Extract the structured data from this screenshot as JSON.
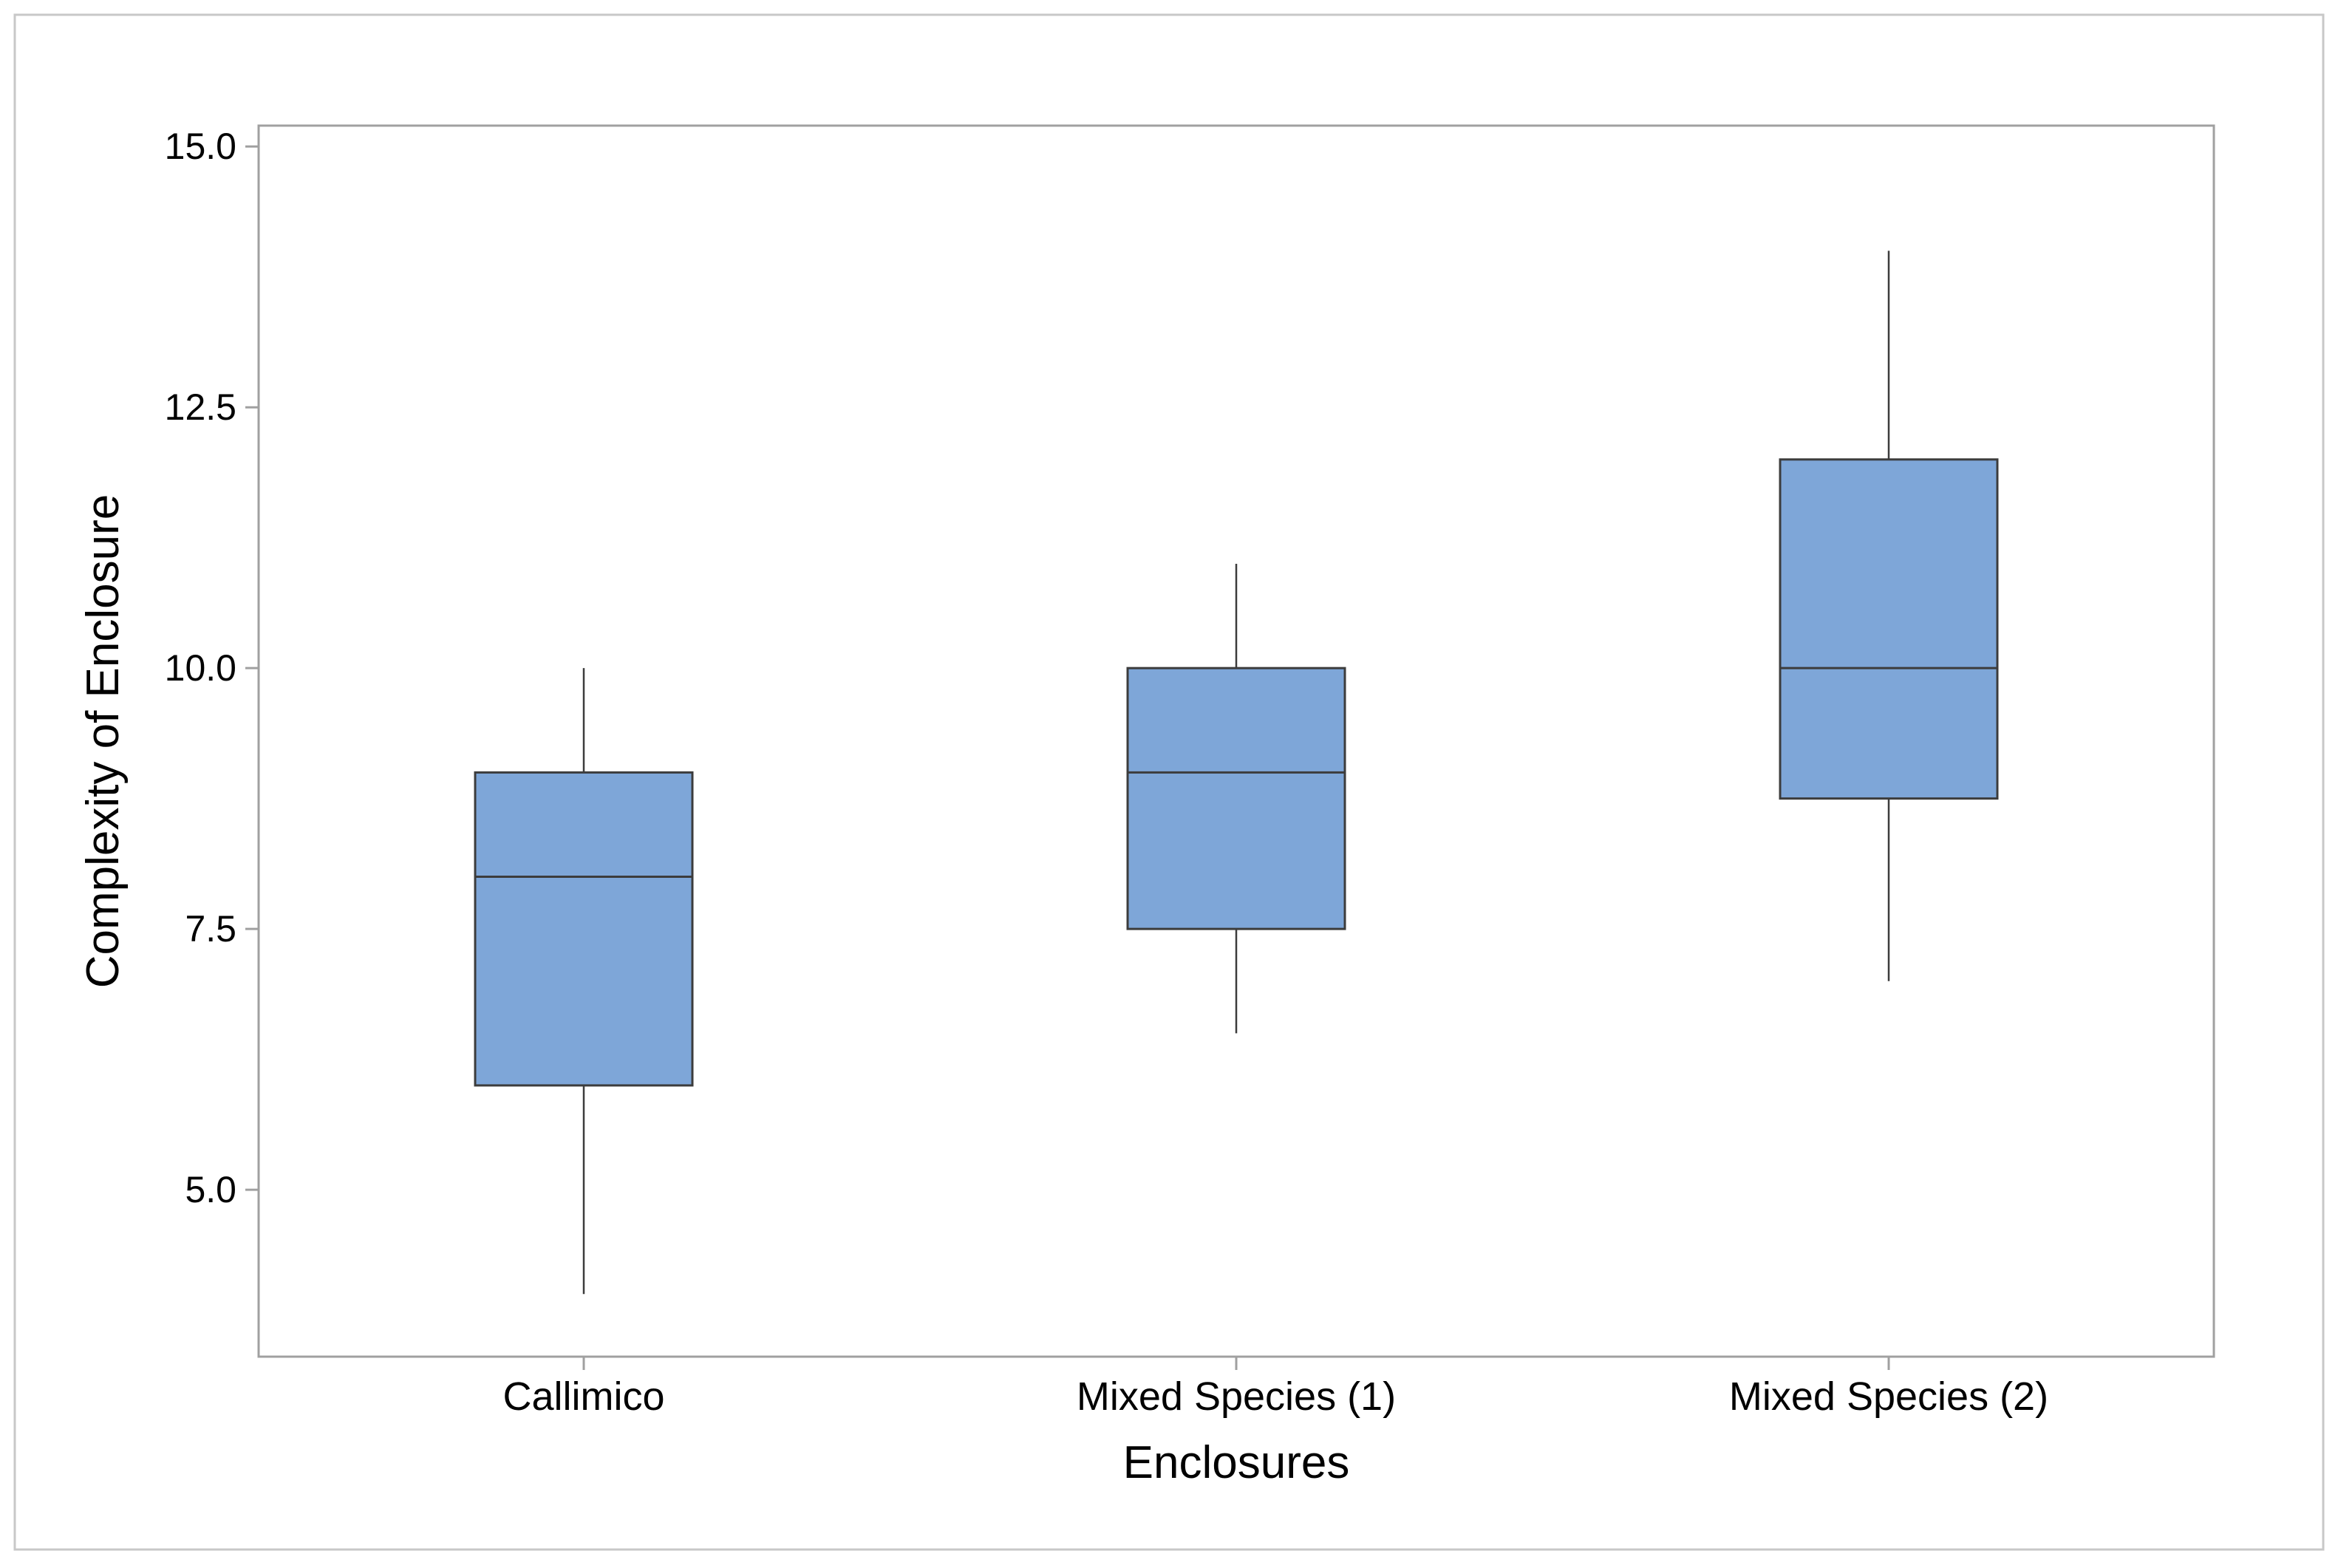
{
  "chart_data": {
    "type": "boxplot",
    "title": "",
    "xlabel": "Enclosures",
    "ylabel": "Complexity of Enclosure",
    "ylim": [
      3.4,
      15.2
    ],
    "yticks": [
      5.0,
      7.5,
      10.0,
      12.5,
      15.0
    ],
    "ytick_labels": [
      "5.0",
      "7.5",
      "10.0",
      "12.5",
      "15.0"
    ],
    "grid": false,
    "legend": "none",
    "box_color": "#7ea6d8",
    "edge_color": "#3c3c3c",
    "categories": [
      "Callimico",
      "Mixed Species (1)",
      "Mixed Species (2)"
    ],
    "boxes": [
      {
        "name": "Callimico",
        "whisker_low": 4.0,
        "q1": 6.0,
        "median": 8.0,
        "q3": 9.0,
        "whisker_high": 10.0
      },
      {
        "name": "Mixed Species (1)",
        "whisker_low": 6.5,
        "q1": 7.5,
        "median": 9.0,
        "q3": 10.0,
        "whisker_high": 11.0
      },
      {
        "name": "Mixed Species (2)",
        "whisker_low": 7.0,
        "q1": 8.75,
        "median": 10.0,
        "q3": 12.0,
        "whisker_high": 14.0
      }
    ]
  }
}
